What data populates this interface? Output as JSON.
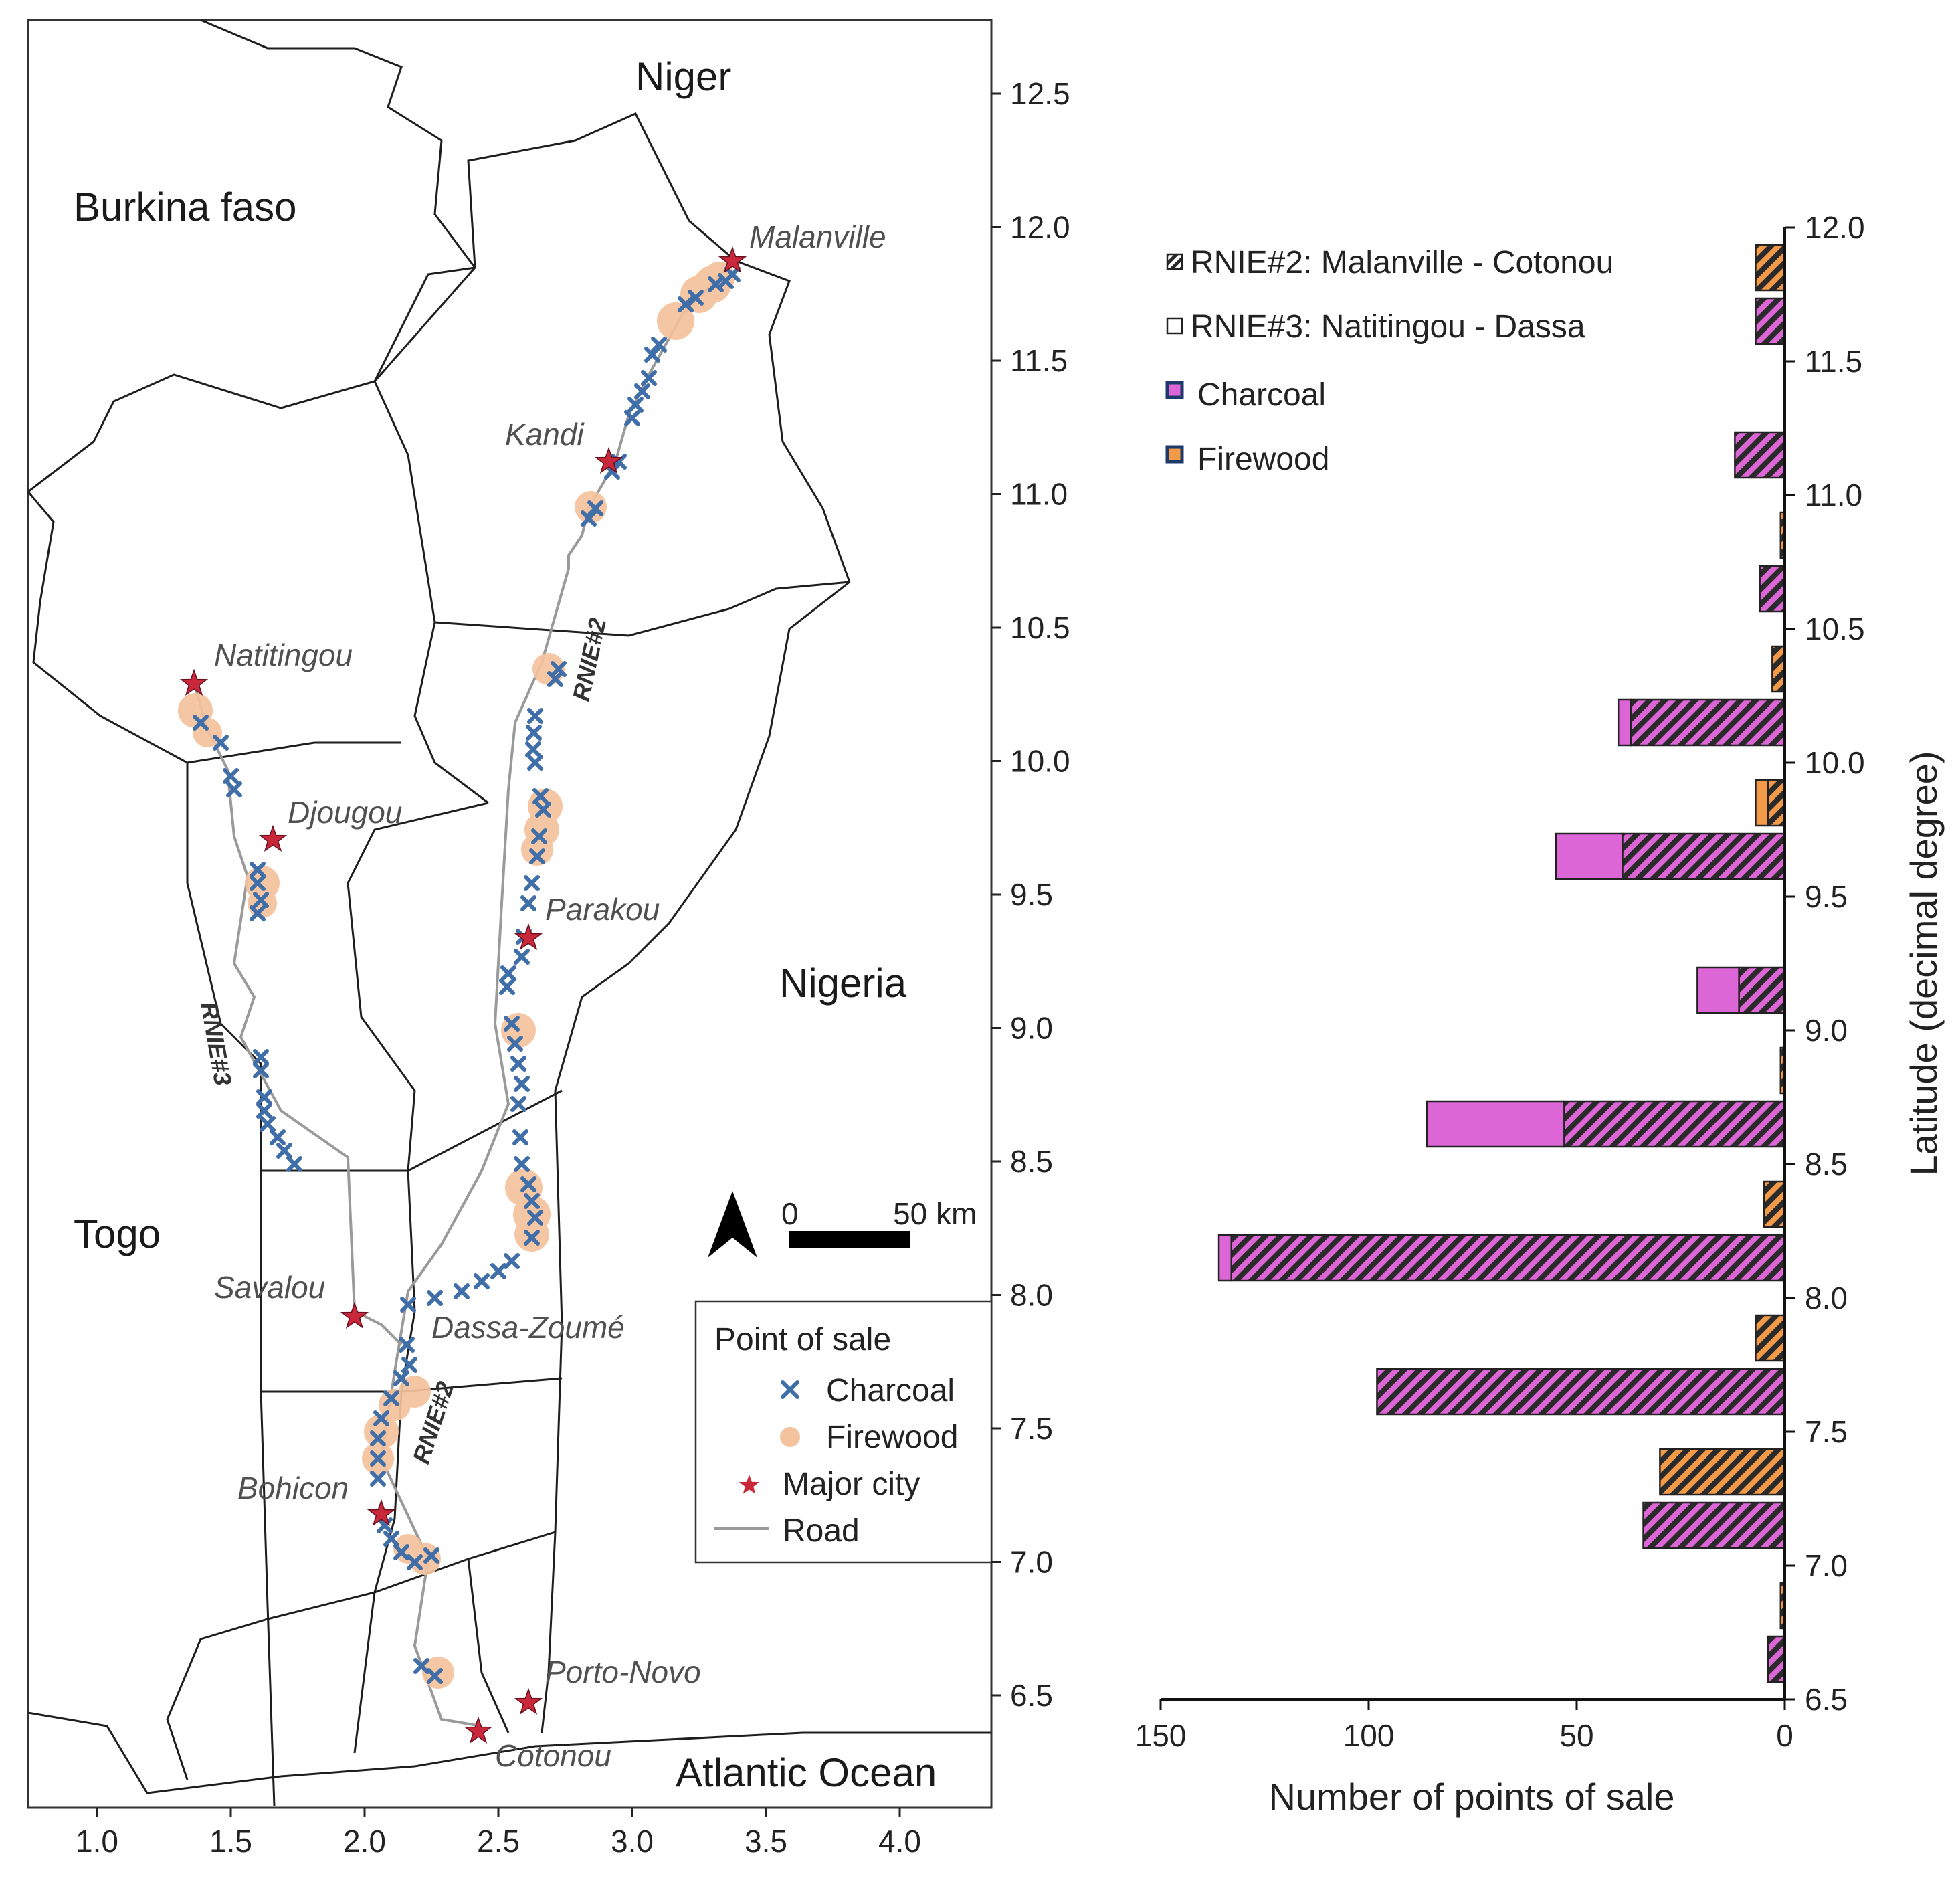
{
  "map": {
    "countries": [
      "Niger",
      "Burkina faso",
      "Nigeria",
      "Togo",
      "Atlantic Ocean"
    ],
    "cities": [
      "Malanville",
      "Kandi",
      "Natitingou",
      "Djougou",
      "Parakou",
      "Savalou",
      "Dassa-Zoumé",
      "Bohicon",
      "Porto-Novo",
      "Cotonou"
    ],
    "roads": [
      "RNIE#2",
      "RNIE#2",
      "RNIE#3"
    ],
    "scale_bar": {
      "start": "0",
      "end": "50 km"
    },
    "x_ticks": [
      "1.0",
      "1.5",
      "2.0",
      "2.5",
      "3.0",
      "3.5",
      "4.0"
    ],
    "y_ticks": [
      "12.5",
      "12.0",
      "11.5",
      "11.0",
      "10.5",
      "10.0",
      "9.5",
      "9.0",
      "8.5",
      "8.0",
      "7.5",
      "7.0",
      "6.5"
    ],
    "legend": {
      "title": "Point of sale",
      "items": [
        {
          "label": "Charcoal",
          "symbol": "cross",
          "color": "#3f6ea8"
        },
        {
          "label": "Firewood",
          "symbol": "dot",
          "color": "#f4c29c"
        },
        {
          "label": "Major city",
          "symbol": "star",
          "color": "#c8283a"
        },
        {
          "label": "Road",
          "symbol": "line",
          "color": "#9a9a9a"
        }
      ]
    }
  },
  "chart_data": {
    "type": "bar",
    "orientation": "horizontal",
    "xlabel": "Number of points of sale",
    "ylabel": "Latitude (decimal degree)",
    "xlim": [
      150,
      0
    ],
    "ylim": [
      6.5,
      12.0
    ],
    "x_ticks": [
      "150",
      "100",
      "50",
      "0"
    ],
    "y_ticks": [
      "12.0",
      "11.5",
      "11.0",
      "10.5",
      "10.0",
      "9.5",
      "9.0",
      "8.5",
      "8.0",
      "7.5",
      "7.0",
      "6.5"
    ],
    "legend": [
      {
        "label": "RNIE#2: Malanville - Cotonou",
        "pattern": "hatched"
      },
      {
        "label": "RNIE#3: Natitingou - Dassa",
        "pattern": "plain"
      },
      {
        "label": "Charcoal",
        "color": "#dd66d6"
      },
      {
        "label": "Firewood",
        "color": "#f29a48"
      }
    ],
    "colors": {
      "charcoal": "#dd66d6",
      "firewood": "#f29a48",
      "hatch": "#2a2a2a"
    },
    "bars": [
      {
        "product": "Firewood",
        "lat": 11.85,
        "rnie2": 7,
        "rnie3": 0
      },
      {
        "product": "Charcoal",
        "lat": 11.65,
        "rnie2": 7,
        "rnie3": 0
      },
      {
        "product": "Charcoal",
        "lat": 11.15,
        "rnie2": 12,
        "rnie3": 0
      },
      {
        "product": "Firewood",
        "lat": 10.85,
        "rnie2": 1,
        "rnie3": 0
      },
      {
        "product": "Charcoal",
        "lat": 10.65,
        "rnie2": 6,
        "rnie3": 0
      },
      {
        "product": "Firewood",
        "lat": 10.35,
        "rnie2": 3,
        "rnie3": 0
      },
      {
        "product": "Charcoal",
        "lat": 10.15,
        "rnie2": 37,
        "rnie3": 3
      },
      {
        "product": "Firewood",
        "lat": 9.85,
        "rnie2": 4,
        "rnie3": 3
      },
      {
        "product": "Charcoal",
        "lat": 9.65,
        "rnie2": 39,
        "rnie3": 16
      },
      {
        "product": "Firewood",
        "lat": 9.35,
        "rnie2": 0,
        "rnie3": 0
      },
      {
        "product": "Charcoal",
        "lat": 9.15,
        "rnie2": 11,
        "rnie3": 10
      },
      {
        "product": "Firewood",
        "lat": 8.85,
        "rnie2": 1,
        "rnie3": 0
      },
      {
        "product": "Charcoal",
        "lat": 8.65,
        "rnie2": 53,
        "rnie3": 33
      },
      {
        "product": "Firewood",
        "lat": 8.35,
        "rnie2": 5,
        "rnie3": 0
      },
      {
        "product": "Charcoal",
        "lat": 8.15,
        "rnie2": 133,
        "rnie3": 3
      },
      {
        "product": "Firewood",
        "lat": 7.85,
        "rnie2": 7,
        "rnie3": 0
      },
      {
        "product": "Charcoal",
        "lat": 7.65,
        "rnie2": 98,
        "rnie3": 0
      },
      {
        "product": "Firewood",
        "lat": 7.35,
        "rnie2": 30,
        "rnie3": 0
      },
      {
        "product": "Charcoal",
        "lat": 7.15,
        "rnie2": 34,
        "rnie3": 0
      },
      {
        "product": "Firewood",
        "lat": 6.85,
        "rnie2": 1,
        "rnie3": 0
      },
      {
        "product": "Charcoal",
        "lat": 6.65,
        "rnie2": 4,
        "rnie3": 0
      }
    ]
  }
}
